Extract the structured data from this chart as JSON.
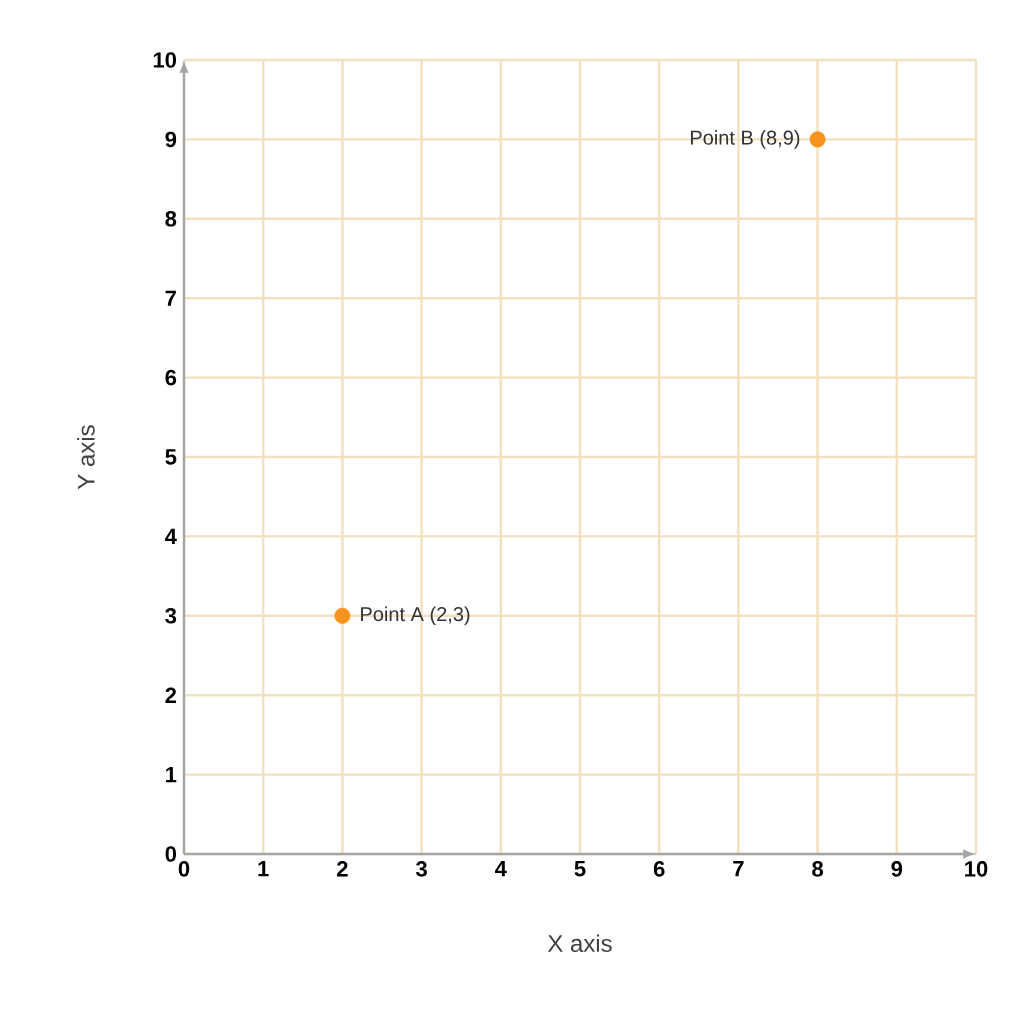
{
  "chart_data": {
    "type": "scatter",
    "xlabel": "X axis",
    "ylabel": "Y axis",
    "x": [
      2,
      8
    ],
    "values": [
      3,
      9
    ],
    "color": "#f7941d",
    "marker": "circle",
    "xlim": [
      0,
      10
    ],
    "ylim": [
      0,
      10
    ],
    "xticks": [
      0,
      1,
      2,
      3,
      4,
      5,
      6,
      7,
      8,
      9,
      10
    ],
    "yticks": [
      0,
      1,
      2,
      3,
      4,
      5,
      6,
      7,
      8,
      9,
      10
    ],
    "grid": true,
    "annotations": [
      {
        "text": "Point A (2,3)",
        "x": 2,
        "y": 3
      },
      {
        "text": "Point B (8,9)",
        "x": 8,
        "y": 9
      }
    ]
  }
}
